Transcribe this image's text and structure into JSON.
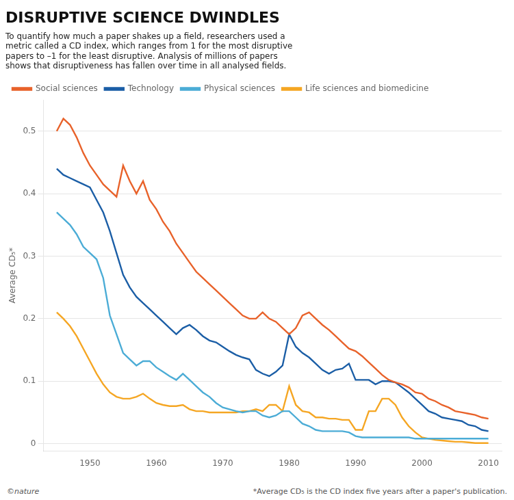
{
  "chart_data": {
    "type": "line",
    "title": "DISRUPTIVE SCIENCE DWINDLES",
    "subtitle": "To quantify how much a paper shakes up a field, researchers used a\nmetric called a CD index, which ranges from 1 for the most disruptive\npapers to –1 for the least disruptive. Analysis of millions of papers\nshows that disruptiveness has fallen over time in all analysed fields.",
    "y_label": "Average CD₅*",
    "credit": "©nature",
    "footnote": "*Average CD₅ is the CD index five years after a paper's publication.",
    "xlim": [
      1943,
      2012
    ],
    "xticks": [
      1950,
      1960,
      1970,
      1980,
      1990,
      2000,
      2010
    ],
    "ylim": [
      -0.012,
      0.55
    ],
    "yticks": [
      0,
      0.1,
      0.2,
      0.3,
      0.4,
      0.5
    ],
    "grid": "y",
    "legend": "top",
    "x": [
      1945,
      1946,
      1947,
      1948,
      1949,
      1950,
      1951,
      1952,
      1953,
      1954,
      1955,
      1956,
      1957,
      1958,
      1959,
      1960,
      1961,
      1962,
      1963,
      1964,
      1965,
      1966,
      1967,
      1968,
      1969,
      1970,
      1971,
      1972,
      1973,
      1974,
      1975,
      1976,
      1977,
      1978,
      1979,
      1980,
      1981,
      1982,
      1983,
      1984,
      1985,
      1986,
      1987,
      1988,
      1989,
      1990,
      1991,
      1992,
      1993,
      1994,
      1995,
      1996,
      1997,
      1998,
      1999,
      2000,
      2001,
      2002,
      2003,
      2004,
      2005,
      2006,
      2007,
      2008,
      2009,
      2010
    ],
    "series": [
      {
        "name": "Social sciences",
        "color": "#E8622A",
        "values": [
          0.5,
          0.52,
          0.51,
          0.49,
          0.465,
          0.445,
          0.43,
          0.415,
          0.405,
          0.395,
          0.445,
          0.42,
          0.4,
          0.42,
          0.39,
          0.375,
          0.355,
          0.34,
          0.32,
          0.305,
          0.29,
          0.275,
          0.265,
          0.255,
          0.245,
          0.235,
          0.225,
          0.215,
          0.205,
          0.2,
          0.2,
          0.21,
          0.2,
          0.195,
          0.185,
          0.175,
          0.185,
          0.205,
          0.21,
          0.2,
          0.19,
          0.182,
          0.172,
          0.162,
          0.152,
          0.148,
          0.14,
          0.13,
          0.12,
          0.11,
          0.102,
          0.098,
          0.095,
          0.09,
          0.082,
          0.08,
          0.072,
          0.068,
          0.062,
          0.058,
          0.052,
          0.05,
          0.048,
          0.046,
          0.042,
          0.04
        ]
      },
      {
        "name": "Technology",
        "color": "#1B5EA6",
        "values": [
          0.44,
          0.43,
          0.425,
          0.42,
          0.415,
          0.41,
          0.39,
          0.37,
          0.34,
          0.305,
          0.27,
          0.25,
          0.235,
          0.225,
          0.215,
          0.205,
          0.195,
          0.185,
          0.175,
          0.185,
          0.19,
          0.182,
          0.172,
          0.165,
          0.162,
          0.155,
          0.148,
          0.142,
          0.138,
          0.135,
          0.118,
          0.112,
          0.108,
          0.115,
          0.125,
          0.175,
          0.155,
          0.145,
          0.138,
          0.128,
          0.118,
          0.112,
          0.118,
          0.12,
          0.128,
          0.102,
          0.102,
          0.102,
          0.095,
          0.1,
          0.1,
          0.098,
          0.09,
          0.082,
          0.072,
          0.062,
          0.052,
          0.048,
          0.042,
          0.04,
          0.038,
          0.036,
          0.03,
          0.028,
          0.022,
          0.02
        ]
      },
      {
        "name": "Physical sciences",
        "color": "#4BACD6",
        "values": [
          0.37,
          0.36,
          0.35,
          0.335,
          0.315,
          0.305,
          0.295,
          0.265,
          0.205,
          0.175,
          0.145,
          0.135,
          0.125,
          0.132,
          0.132,
          0.122,
          0.115,
          0.108,
          0.102,
          0.112,
          0.102,
          0.092,
          0.082,
          0.075,
          0.065,
          0.058,
          0.055,
          0.052,
          0.05,
          0.052,
          0.052,
          0.045,
          0.042,
          0.045,
          0.052,
          0.052,
          0.042,
          0.032,
          0.028,
          0.022,
          0.02,
          0.02,
          0.02,
          0.02,
          0.018,
          0.012,
          0.01,
          0.01,
          0.01,
          0.01,
          0.01,
          0.01,
          0.01,
          0.01,
          0.008,
          0.008,
          0.008,
          0.008,
          0.008,
          0.008,
          0.008,
          0.008,
          0.008,
          0.008,
          0.008,
          0.008
        ]
      },
      {
        "name": "Life sciences and biomedicine",
        "color": "#F5A623",
        "values": [
          0.21,
          0.2,
          0.188,
          0.172,
          0.152,
          0.132,
          0.112,
          0.095,
          0.082,
          0.075,
          0.072,
          0.072,
          0.075,
          0.08,
          0.072,
          0.065,
          0.062,
          0.06,
          0.06,
          0.062,
          0.055,
          0.052,
          0.052,
          0.05,
          0.05,
          0.05,
          0.05,
          0.05,
          0.052,
          0.052,
          0.055,
          0.052,
          0.062,
          0.062,
          0.052,
          0.092,
          0.062,
          0.052,
          0.05,
          0.042,
          0.042,
          0.04,
          0.04,
          0.038,
          0.038,
          0.022,
          0.022,
          0.052,
          0.052,
          0.072,
          0.072,
          0.062,
          0.042,
          0.028,
          0.018,
          0.01,
          0.008,
          0.006,
          0.005,
          0.004,
          0.003,
          0.003,
          0.002,
          0.001,
          0.001,
          0.001
        ]
      }
    ]
  }
}
